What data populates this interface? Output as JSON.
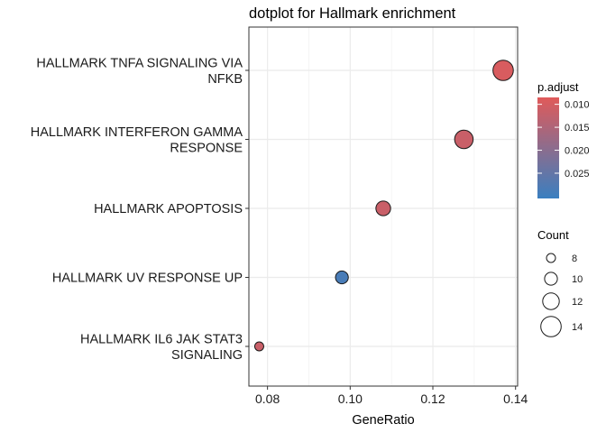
{
  "chart_data": {
    "type": "scatter",
    "title": "dotplot for Hallmark enrichment",
    "xlabel": "GeneRatio",
    "ylabel": "",
    "xlim": [
      0.0755,
      0.1405
    ],
    "xticks": [
      "0.08",
      "0.10",
      "0.12",
      "0.14"
    ],
    "xtick_values": [
      0.08,
      0.1,
      0.12,
      0.14
    ],
    "grid": true,
    "legend_placement": "right",
    "categories": [
      [
        "HALLMARK TNFA SIGNALING VIA",
        "NFKB"
      ],
      [
        "HALLMARK INTERFERON GAMMA",
        "RESPONSE"
      ],
      [
        "HALLMARK APOPTOSIS"
      ],
      [
        "HALLMARK UV RESPONSE UP"
      ],
      [
        "HALLMARK IL6 JAK STAT3",
        "SIGNALING"
      ]
    ],
    "points": [
      {
        "x": 0.137,
        "count": 14,
        "p_adjust": 0.0095
      },
      {
        "x": 0.1275,
        "count": 13,
        "p_adjust": 0.0115
      },
      {
        "x": 0.108,
        "count": 11,
        "p_adjust": 0.0115
      },
      {
        "x": 0.098,
        "count": 10,
        "p_adjust": 0.0285
      },
      {
        "x": 0.078,
        "count": 8,
        "p_adjust": 0.0115
      }
    ],
    "color_legend": {
      "title": "p.adjust",
      "ticks": [
        "0.010",
        "0.015",
        "0.020",
        "0.025"
      ],
      "tick_values": [
        0.01,
        0.015,
        0.02,
        0.025
      ],
      "range": [
        0.0085,
        0.0305
      ],
      "low_color": "#e05a5a",
      "high_color": "#3a7fc0"
    },
    "size_legend": {
      "title": "Count",
      "values": [
        8,
        10,
        12,
        14
      ],
      "labels": [
        "8",
        "10",
        "12",
        "14"
      ]
    },
    "point_outline": "#1a1a1a"
  }
}
